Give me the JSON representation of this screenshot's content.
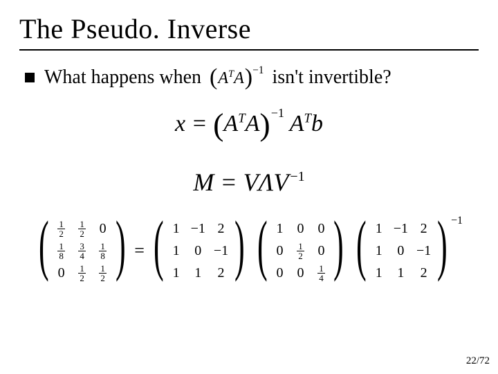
{
  "title": "The Pseudo. Inverse",
  "bullet": {
    "before": "What happens when",
    "expr_inner_html": "A<span class='sup-i'>T</span>A",
    "expr_sup": "−1",
    "after": "isn't invertible?"
  },
  "eq1_html": "x = <span class='big-paren'>(</span>A<span class='sup-i' style='font-size:0.55em;'>T</span>A<span class='big-paren'>)</span><span class='sup-out'>−1</span> A<span class='sup-i' style='font-size:0.55em;'>T</span>b",
  "eq2_html": "M = VΛV<span class='sup-out'>−1</span>",
  "matrices": {
    "L": [
      [
        {
          "f": [
            1,
            2
          ]
        },
        {
          "f": [
            1,
            2
          ]
        },
        {
          "t": "0"
        }
      ],
      [
        {
          "f": [
            1,
            8
          ]
        },
        {
          "f": [
            3,
            4
          ]
        },
        {
          "f": [
            1,
            8
          ]
        }
      ],
      [
        {
          "t": "0"
        },
        {
          "f": [
            1,
            2
          ]
        },
        {
          "f": [
            1,
            2
          ]
        }
      ]
    ],
    "A": [
      [
        {
          "t": "1"
        },
        {
          "t": "−1"
        },
        {
          "t": "2"
        }
      ],
      [
        {
          "t": "1"
        },
        {
          "t": "0"
        },
        {
          "t": "−1"
        }
      ],
      [
        {
          "t": "1"
        },
        {
          "t": "1"
        },
        {
          "t": "2"
        }
      ]
    ],
    "B": [
      [
        {
          "t": "1"
        },
        {
          "t": "0"
        },
        {
          "t": "0"
        }
      ],
      [
        {
          "t": "0"
        },
        {
          "f": [
            1,
            2
          ]
        },
        {
          "t": "0"
        }
      ],
      [
        {
          "t": "0"
        },
        {
          "t": "0"
        },
        {
          "f": [
            1,
            4
          ]
        }
      ]
    ],
    "C": [
      [
        {
          "t": "1"
        },
        {
          "t": "−1"
        },
        {
          "t": "2"
        }
      ],
      [
        {
          "t": "1"
        },
        {
          "t": "0"
        },
        {
          "t": "−1"
        }
      ],
      [
        {
          "t": "1"
        },
        {
          "t": "1"
        },
        {
          "t": "2"
        }
      ]
    ],
    "C_sup": "−1"
  },
  "page": "22/72",
  "colors": {
    "text": "#000000",
    "bg": "#ffffff"
  }
}
